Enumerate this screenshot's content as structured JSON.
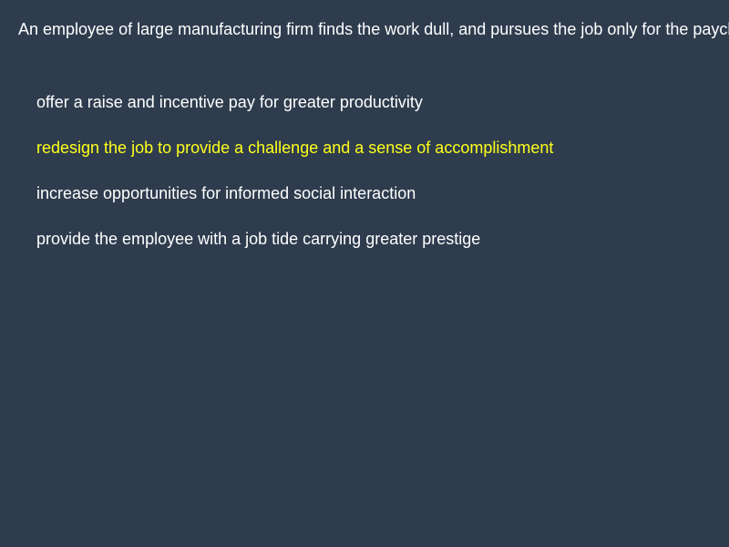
{
  "question": {
    "text": "An employee of large manufacturing firm finds the work dull, and pursues the job only for the paycheck. According to Herzberg, which of the following would be most likely to motivate this employee?"
  },
  "options": [
    {
      "label": "offer a raise and incentive pay for greater productivity"
    },
    {
      "label": "redesign the job to provide a challenge and a sense of accomplishment"
    },
    {
      "label": "increase opportunities for informed social interaction"
    },
    {
      "label": "provide the employee with a job tide carrying greater prestige"
    }
  ],
  "selected_index": 1,
  "colors": {
    "background": "#2e3c4e",
    "text": "#ffffff",
    "selected": "#ffff1a"
  }
}
